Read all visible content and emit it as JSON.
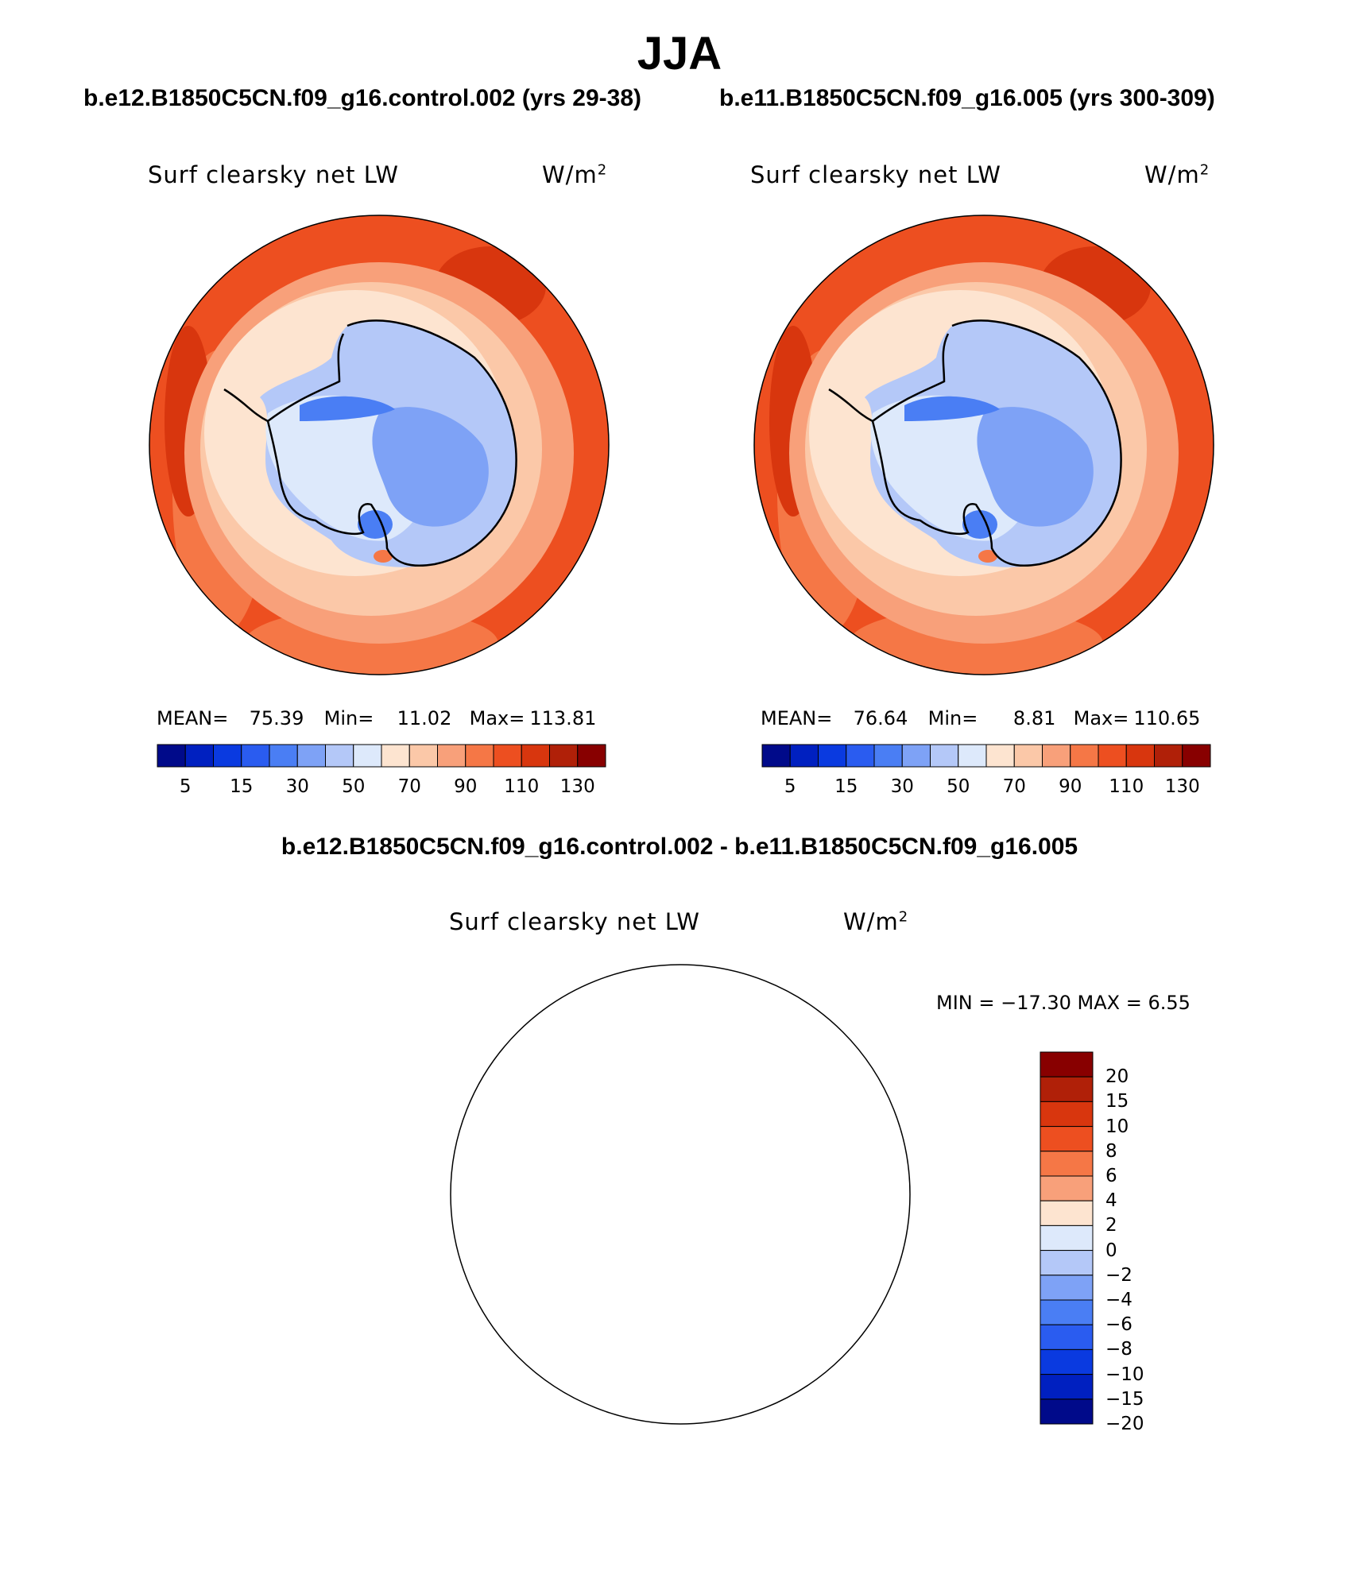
{
  "title": "JJA",
  "panels": [
    {
      "case": "b.e12.B1850C5CN.f09_g16.control.002 (yrs 29-38)",
      "variable": "Surf clearsky net LW",
      "units_base": "W/m",
      "units_exp": "2",
      "stats": {
        "mean_label": "MEAN=",
        "mean": "75.39",
        "min_label": "Min=",
        "min": "11.02",
        "max_label": "Max=",
        "max": "113.81"
      }
    },
    {
      "case": "b.e11.B1850C5CN.f09_g16.005 (yrs 300-309)",
      "variable": "Surf clearsky net LW",
      "units_base": "W/m",
      "units_exp": "2",
      "stats": {
        "mean_label": "MEAN=",
        "mean": "76.64",
        "min_label": "Min=",
        "min": "8.81",
        "max_label": "Max=",
        "max": "110.65"
      }
    }
  ],
  "difference": {
    "title": "b.e12.B1850C5CN.f09_g16.control.002 - b.e11.B1850C5CN.f09_g16.005",
    "variable": "Surf clearsky net LW",
    "units_base": "W/m",
    "units_exp": "2",
    "minmax_text": "MIN = −17.30 MAX =    6.55"
  },
  "abs_colorbar": {
    "colors": [
      "#000a8a",
      "#0020c0",
      "#0a3ae0",
      "#2a5cf0",
      "#4a7ef4",
      "#7ea2f6",
      "#b4c8f8",
      "#dde9fb",
      "#fde4d0",
      "#fbc8a8",
      "#f8a07a",
      "#f57746",
      "#ed4f20",
      "#d8360e",
      "#b02008",
      "#880000"
    ],
    "labels": [
      "5",
      "15",
      "30",
      "50",
      "70",
      "90",
      "110",
      "130"
    ]
  },
  "diff_colorbar": {
    "colors_top_to_bottom": [
      "#880000",
      "#b02008",
      "#d8360e",
      "#ed4f20",
      "#f57746",
      "#f8a07a",
      "#fde4d0",
      "#dde9fb",
      "#b4c8f8",
      "#7ea2f6",
      "#4a7ef4",
      "#2a5cf0",
      "#0a3ae0",
      "#0020c0",
      "#000a8a"
    ],
    "labels": [
      "20",
      "15",
      "10",
      "8",
      "6",
      "4",
      "2",
      "0",
      "−2",
      "−4",
      "−6",
      "−8",
      "−10",
      "−15",
      "−20"
    ]
  }
}
